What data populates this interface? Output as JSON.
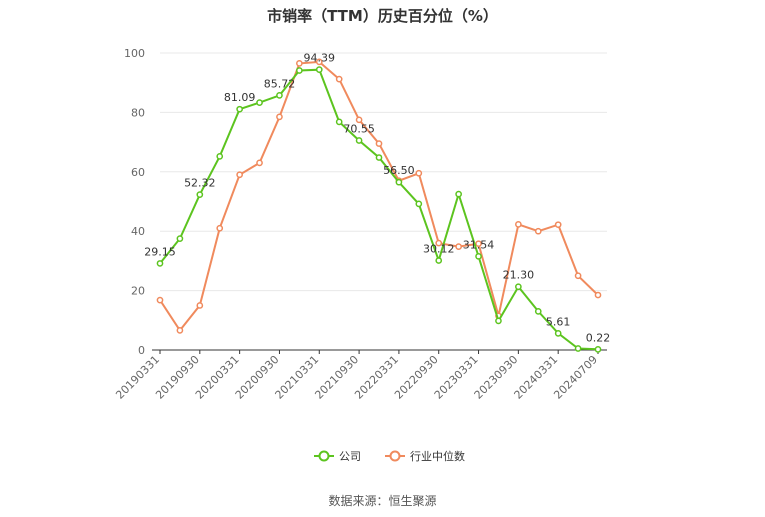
{
  "title": "市销率（TTM）历史百分位（%）",
  "source": "数据来源：恒生聚源",
  "colors": {
    "company": "#5cc41f",
    "industry": "#f08a5d",
    "grid": "#e8e8e8",
    "axis": "#333333"
  },
  "chart_data": {
    "type": "line",
    "title": "市销率（TTM）历史百分位（%）",
    "ylim": [
      0,
      100
    ],
    "yticks": [
      0,
      20,
      40,
      60,
      80,
      100
    ],
    "grid": true,
    "legend_position": "bottom",
    "x_tick_labels": [
      "20190331",
      "20190930",
      "20200331",
      "20200930",
      "20210331",
      "20210930",
      "20220331",
      "20220930",
      "20230331",
      "20230930",
      "20240331",
      "20240709"
    ],
    "x": [
      "20190331",
      "20190630",
      "20190930",
      "20191231",
      "20200331",
      "20200630",
      "20200930",
      "20201231",
      "20210331",
      "20210630",
      "20210930",
      "20211231",
      "20220331",
      "20220630",
      "20220930",
      "20221231",
      "20230331",
      "20230630",
      "20230930",
      "20231231",
      "20240331",
      "20240630",
      "20240709"
    ],
    "series": [
      {
        "name": "公司",
        "values": [
          29.15,
          37.5,
          52.32,
          65.2,
          81.09,
          83.3,
          85.72,
          94.1,
          94.39,
          76.8,
          70.55,
          64.8,
          56.5,
          49.2,
          30.12,
          52.5,
          31.54,
          9.8,
          21.3,
          13.0,
          5.61,
          0.5,
          0.22
        ],
        "labels": [
          "29.15",
          "",
          "52.32",
          "",
          "81.09",
          "",
          "85.72",
          "",
          "94.39",
          "",
          "70.55",
          "",
          "56.50",
          "",
          "30.12",
          "",
          "31.54",
          "",
          "21.30",
          "",
          "5.61",
          "",
          "0.22"
        ]
      },
      {
        "name": "行业中位数",
        "values": [
          16.8,
          6.6,
          15.0,
          41.0,
          59.0,
          63.0,
          78.5,
          96.5,
          97.0,
          91.2,
          77.5,
          69.5,
          57.0,
          59.5,
          36.0,
          34.8,
          35.8,
          11.5,
          42.3,
          40.0,
          42.2,
          25.0,
          18.5
        ]
      }
    ]
  }
}
